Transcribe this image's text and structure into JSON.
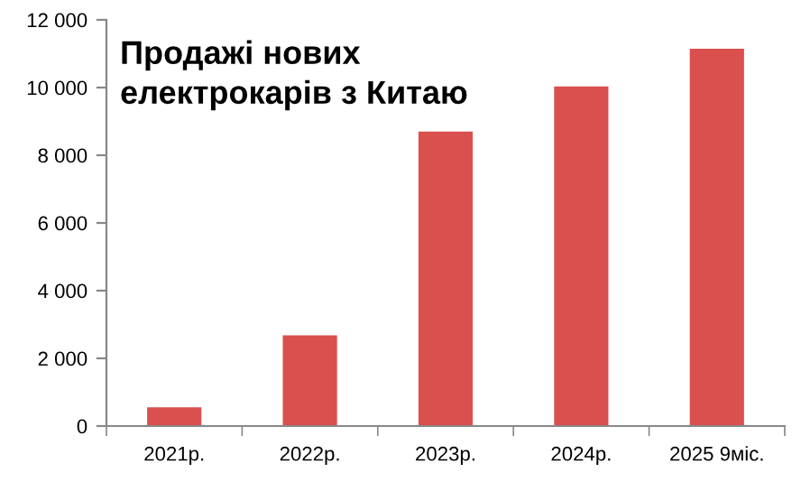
{
  "chart_data": {
    "type": "bar",
    "title": "Продажі нових\nелектрокарів з Китаю",
    "categories": [
      "2021р.",
      "2022р.",
      "2023р.",
      "2024р.",
      "2025 9міс."
    ],
    "values": [
      550,
      2680,
      8700,
      10030,
      11150
    ],
    "color": "#d9504e",
    "ylim": [
      0,
      12000
    ],
    "yticks": [
      0,
      {
        "value": 2000,
        "label": "2 000"
      },
      {
        "value": 4000,
        "label": "4 000"
      },
      {
        "value": 6000,
        "label": "6 000"
      },
      {
        "value": 8000,
        "label": "8 000"
      },
      {
        "value": 10000,
        "label": "10 000"
      },
      {
        "value": 12000,
        "label": "12 000"
      }
    ],
    "grid": false
  }
}
